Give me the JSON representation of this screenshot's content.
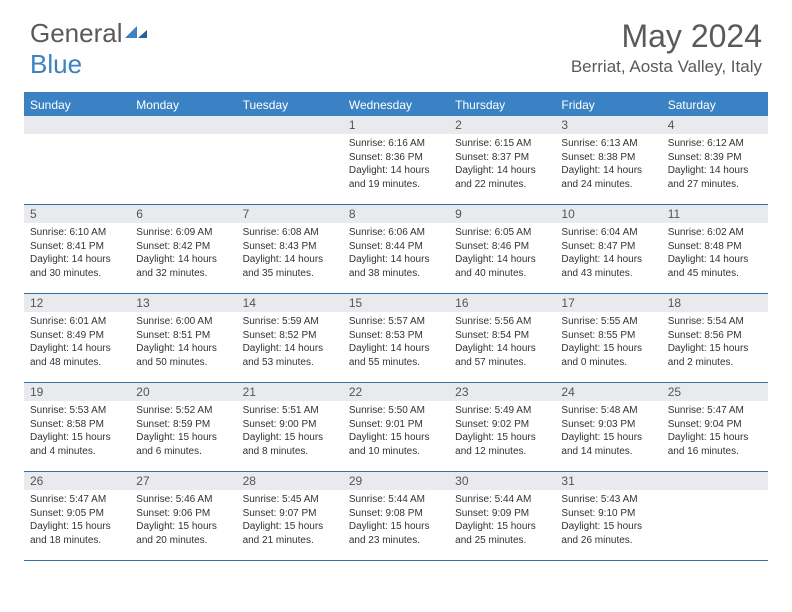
{
  "brand": {
    "part1": "General",
    "part2": "Blue"
  },
  "title": "May 2024",
  "location": "Berriat, Aosta Valley, Italy",
  "colors": {
    "accent": "#3b82c4",
    "header_text": "#5a5a5a",
    "weekday_bg": "#3b82c4",
    "weekday_text": "#ffffff",
    "daynum_bg": "#e8eaed",
    "row_border": "#3b6ea0",
    "body_text": "#333333"
  },
  "typography": {
    "month_fontsize": 32,
    "location_fontsize": 17,
    "weekday_fontsize": 12,
    "daynum_fontsize": 12,
    "content_fontsize": 10
  },
  "layout": {
    "columns": 7,
    "rows": 5,
    "cell_min_height": 88
  },
  "weekdays": [
    "Sunday",
    "Monday",
    "Tuesday",
    "Wednesday",
    "Thursday",
    "Friday",
    "Saturday"
  ],
  "weeks": [
    [
      {
        "day": "",
        "lines": []
      },
      {
        "day": "",
        "lines": []
      },
      {
        "day": "",
        "lines": []
      },
      {
        "day": "1",
        "lines": [
          "Sunrise: 6:16 AM",
          "Sunset: 8:36 PM",
          "Daylight: 14 hours and 19 minutes."
        ]
      },
      {
        "day": "2",
        "lines": [
          "Sunrise: 6:15 AM",
          "Sunset: 8:37 PM",
          "Daylight: 14 hours and 22 minutes."
        ]
      },
      {
        "day": "3",
        "lines": [
          "Sunrise: 6:13 AM",
          "Sunset: 8:38 PM",
          "Daylight: 14 hours and 24 minutes."
        ]
      },
      {
        "day": "4",
        "lines": [
          "Sunrise: 6:12 AM",
          "Sunset: 8:39 PM",
          "Daylight: 14 hours and 27 minutes."
        ]
      }
    ],
    [
      {
        "day": "5",
        "lines": [
          "Sunrise: 6:10 AM",
          "Sunset: 8:41 PM",
          "Daylight: 14 hours and 30 minutes."
        ]
      },
      {
        "day": "6",
        "lines": [
          "Sunrise: 6:09 AM",
          "Sunset: 8:42 PM",
          "Daylight: 14 hours and 32 minutes."
        ]
      },
      {
        "day": "7",
        "lines": [
          "Sunrise: 6:08 AM",
          "Sunset: 8:43 PM",
          "Daylight: 14 hours and 35 minutes."
        ]
      },
      {
        "day": "8",
        "lines": [
          "Sunrise: 6:06 AM",
          "Sunset: 8:44 PM",
          "Daylight: 14 hours and 38 minutes."
        ]
      },
      {
        "day": "9",
        "lines": [
          "Sunrise: 6:05 AM",
          "Sunset: 8:46 PM",
          "Daylight: 14 hours and 40 minutes."
        ]
      },
      {
        "day": "10",
        "lines": [
          "Sunrise: 6:04 AM",
          "Sunset: 8:47 PM",
          "Daylight: 14 hours and 43 minutes."
        ]
      },
      {
        "day": "11",
        "lines": [
          "Sunrise: 6:02 AM",
          "Sunset: 8:48 PM",
          "Daylight: 14 hours and 45 minutes."
        ]
      }
    ],
    [
      {
        "day": "12",
        "lines": [
          "Sunrise: 6:01 AM",
          "Sunset: 8:49 PM",
          "Daylight: 14 hours and 48 minutes."
        ]
      },
      {
        "day": "13",
        "lines": [
          "Sunrise: 6:00 AM",
          "Sunset: 8:51 PM",
          "Daylight: 14 hours and 50 minutes."
        ]
      },
      {
        "day": "14",
        "lines": [
          "Sunrise: 5:59 AM",
          "Sunset: 8:52 PM",
          "Daylight: 14 hours and 53 minutes."
        ]
      },
      {
        "day": "15",
        "lines": [
          "Sunrise: 5:57 AM",
          "Sunset: 8:53 PM",
          "Daylight: 14 hours and 55 minutes."
        ]
      },
      {
        "day": "16",
        "lines": [
          "Sunrise: 5:56 AM",
          "Sunset: 8:54 PM",
          "Daylight: 14 hours and 57 minutes."
        ]
      },
      {
        "day": "17",
        "lines": [
          "Sunrise: 5:55 AM",
          "Sunset: 8:55 PM",
          "Daylight: 15 hours and 0 minutes."
        ]
      },
      {
        "day": "18",
        "lines": [
          "Sunrise: 5:54 AM",
          "Sunset: 8:56 PM",
          "Daylight: 15 hours and 2 minutes."
        ]
      }
    ],
    [
      {
        "day": "19",
        "lines": [
          "Sunrise: 5:53 AM",
          "Sunset: 8:58 PM",
          "Daylight: 15 hours and 4 minutes."
        ]
      },
      {
        "day": "20",
        "lines": [
          "Sunrise: 5:52 AM",
          "Sunset: 8:59 PM",
          "Daylight: 15 hours and 6 minutes."
        ]
      },
      {
        "day": "21",
        "lines": [
          "Sunrise: 5:51 AM",
          "Sunset: 9:00 PM",
          "Daylight: 15 hours and 8 minutes."
        ]
      },
      {
        "day": "22",
        "lines": [
          "Sunrise: 5:50 AM",
          "Sunset: 9:01 PM",
          "Daylight: 15 hours and 10 minutes."
        ]
      },
      {
        "day": "23",
        "lines": [
          "Sunrise: 5:49 AM",
          "Sunset: 9:02 PM",
          "Daylight: 15 hours and 12 minutes."
        ]
      },
      {
        "day": "24",
        "lines": [
          "Sunrise: 5:48 AM",
          "Sunset: 9:03 PM",
          "Daylight: 15 hours and 14 minutes."
        ]
      },
      {
        "day": "25",
        "lines": [
          "Sunrise: 5:47 AM",
          "Sunset: 9:04 PM",
          "Daylight: 15 hours and 16 minutes."
        ]
      }
    ],
    [
      {
        "day": "26",
        "lines": [
          "Sunrise: 5:47 AM",
          "Sunset: 9:05 PM",
          "Daylight: 15 hours and 18 minutes."
        ]
      },
      {
        "day": "27",
        "lines": [
          "Sunrise: 5:46 AM",
          "Sunset: 9:06 PM",
          "Daylight: 15 hours and 20 minutes."
        ]
      },
      {
        "day": "28",
        "lines": [
          "Sunrise: 5:45 AM",
          "Sunset: 9:07 PM",
          "Daylight: 15 hours and 21 minutes."
        ]
      },
      {
        "day": "29",
        "lines": [
          "Sunrise: 5:44 AM",
          "Sunset: 9:08 PM",
          "Daylight: 15 hours and 23 minutes."
        ]
      },
      {
        "day": "30",
        "lines": [
          "Sunrise: 5:44 AM",
          "Sunset: 9:09 PM",
          "Daylight: 15 hours and 25 minutes."
        ]
      },
      {
        "day": "31",
        "lines": [
          "Sunrise: 5:43 AM",
          "Sunset: 9:10 PM",
          "Daylight: 15 hours and 26 minutes."
        ]
      },
      {
        "day": "",
        "lines": []
      }
    ]
  ]
}
